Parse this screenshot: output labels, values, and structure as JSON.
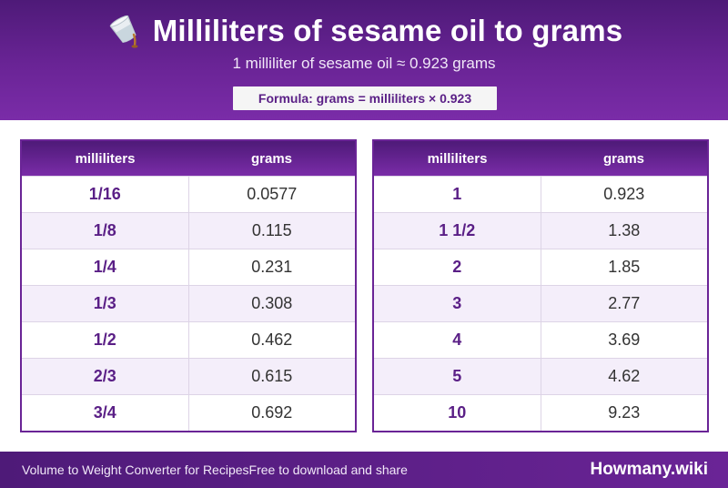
{
  "header": {
    "title": "Milliliters of sesame oil to grams",
    "subtitle": "1 milliliter of sesame oil ≈ 0.923 grams",
    "formula": "Formula: grams = milliliters × 0.923",
    "icon": "oil-cup-pouring-icon"
  },
  "table_left": {
    "columns": [
      "milliliters",
      "grams"
    ],
    "rows": [
      {
        "ml": "1/16",
        "g": "0.0577"
      },
      {
        "ml": "1/8",
        "g": "0.115"
      },
      {
        "ml": "1/4",
        "g": "0.231"
      },
      {
        "ml": "1/3",
        "g": "0.308"
      },
      {
        "ml": "1/2",
        "g": "0.462"
      },
      {
        "ml": "2/3",
        "g": "0.615"
      },
      {
        "ml": "3/4",
        "g": "0.692"
      }
    ]
  },
  "table_right": {
    "columns": [
      "milliliters",
      "grams"
    ],
    "rows": [
      {
        "ml": "1",
        "g": "0.923"
      },
      {
        "ml": "1 1/2",
        "g": "1.38"
      },
      {
        "ml": "2",
        "g": "1.85"
      },
      {
        "ml": "3",
        "g": "2.77"
      },
      {
        "ml": "4",
        "g": "3.69"
      },
      {
        "ml": "5",
        "g": "4.62"
      },
      {
        "ml": "10",
        "g": "9.23"
      }
    ]
  },
  "footer": {
    "left_text": "Volume to Weight Converter for Recipes",
    "right_text": "Free to download and share",
    "brand": "Howmany.wiki"
  },
  "colors": {
    "primary": "#6a2496",
    "dark": "#4e1a78",
    "accent_text": "#5a1f86",
    "row_alt": "#f4eefa"
  }
}
